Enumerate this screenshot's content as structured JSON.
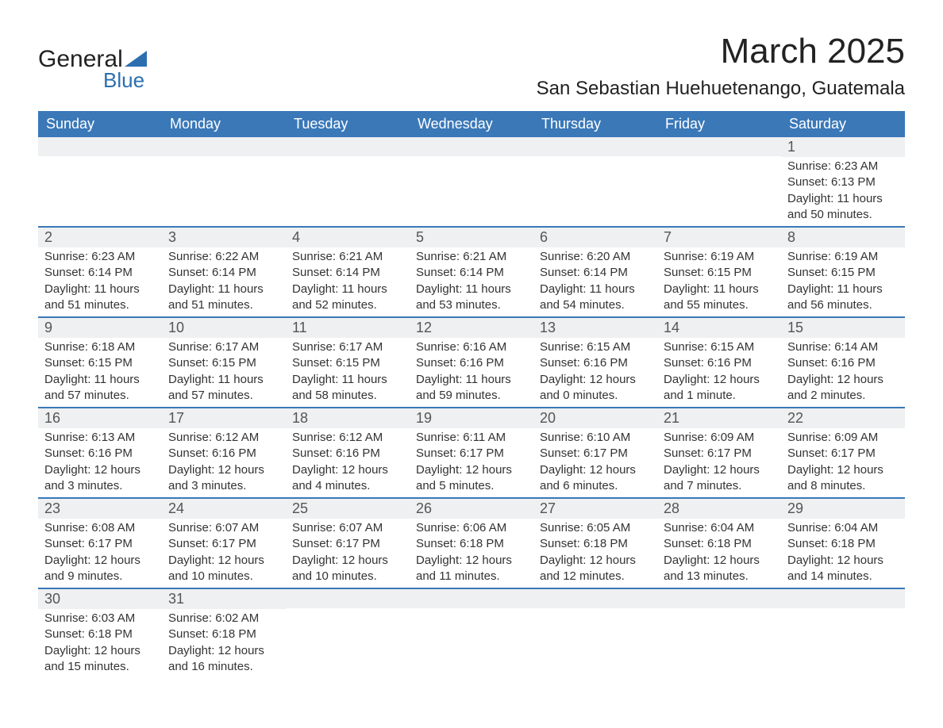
{
  "logo": {
    "line1": "General",
    "line2": "Blue",
    "triangle_color": "#2b6fb0"
  },
  "title": "March 2025",
  "location": "San Sebastian Huehuetenango, Guatemala",
  "colors": {
    "header_bg": "#3a78b8",
    "header_text": "#ffffff",
    "daynum_bg": "#eef0f1",
    "row_divider": "#3a78b8",
    "text": "#333333",
    "page_bg": "#ffffff"
  },
  "fonts": {
    "title_pt": 44,
    "location_pt": 24,
    "weekday_pt": 18,
    "daynum_pt": 18,
    "body_pt": 15
  },
  "weekdays": [
    "Sunday",
    "Monday",
    "Tuesday",
    "Wednesday",
    "Thursday",
    "Friday",
    "Saturday"
  ],
  "labels": {
    "sunrise": "Sunrise:",
    "sunset": "Sunset:",
    "daylight": "Daylight:"
  },
  "weeks": [
    [
      {
        "day": "",
        "sunrise": "",
        "sunset": "",
        "daylight": ""
      },
      {
        "day": "",
        "sunrise": "",
        "sunset": "",
        "daylight": ""
      },
      {
        "day": "",
        "sunrise": "",
        "sunset": "",
        "daylight": ""
      },
      {
        "day": "",
        "sunrise": "",
        "sunset": "",
        "daylight": ""
      },
      {
        "day": "",
        "sunrise": "",
        "sunset": "",
        "daylight": ""
      },
      {
        "day": "",
        "sunrise": "",
        "sunset": "",
        "daylight": ""
      },
      {
        "day": "1",
        "sunrise": "6:23 AM",
        "sunset": "6:13 PM",
        "daylight": "11 hours and 50 minutes."
      }
    ],
    [
      {
        "day": "2",
        "sunrise": "6:23 AM",
        "sunset": "6:14 PM",
        "daylight": "11 hours and 51 minutes."
      },
      {
        "day": "3",
        "sunrise": "6:22 AM",
        "sunset": "6:14 PM",
        "daylight": "11 hours and 51 minutes."
      },
      {
        "day": "4",
        "sunrise": "6:21 AM",
        "sunset": "6:14 PM",
        "daylight": "11 hours and 52 minutes."
      },
      {
        "day": "5",
        "sunrise": "6:21 AM",
        "sunset": "6:14 PM",
        "daylight": "11 hours and 53 minutes."
      },
      {
        "day": "6",
        "sunrise": "6:20 AM",
        "sunset": "6:14 PM",
        "daylight": "11 hours and 54 minutes."
      },
      {
        "day": "7",
        "sunrise": "6:19 AM",
        "sunset": "6:15 PM",
        "daylight": "11 hours and 55 minutes."
      },
      {
        "day": "8",
        "sunrise": "6:19 AM",
        "sunset": "6:15 PM",
        "daylight": "11 hours and 56 minutes."
      }
    ],
    [
      {
        "day": "9",
        "sunrise": "6:18 AM",
        "sunset": "6:15 PM",
        "daylight": "11 hours and 57 minutes."
      },
      {
        "day": "10",
        "sunrise": "6:17 AM",
        "sunset": "6:15 PM",
        "daylight": "11 hours and 57 minutes."
      },
      {
        "day": "11",
        "sunrise": "6:17 AM",
        "sunset": "6:15 PM",
        "daylight": "11 hours and 58 minutes."
      },
      {
        "day": "12",
        "sunrise": "6:16 AM",
        "sunset": "6:16 PM",
        "daylight": "11 hours and 59 minutes."
      },
      {
        "day": "13",
        "sunrise": "6:15 AM",
        "sunset": "6:16 PM",
        "daylight": "12 hours and 0 minutes."
      },
      {
        "day": "14",
        "sunrise": "6:15 AM",
        "sunset": "6:16 PM",
        "daylight": "12 hours and 1 minute."
      },
      {
        "day": "15",
        "sunrise": "6:14 AM",
        "sunset": "6:16 PM",
        "daylight": "12 hours and 2 minutes."
      }
    ],
    [
      {
        "day": "16",
        "sunrise": "6:13 AM",
        "sunset": "6:16 PM",
        "daylight": "12 hours and 3 minutes."
      },
      {
        "day": "17",
        "sunrise": "6:12 AM",
        "sunset": "6:16 PM",
        "daylight": "12 hours and 3 minutes."
      },
      {
        "day": "18",
        "sunrise": "6:12 AM",
        "sunset": "6:16 PM",
        "daylight": "12 hours and 4 minutes."
      },
      {
        "day": "19",
        "sunrise": "6:11 AM",
        "sunset": "6:17 PM",
        "daylight": "12 hours and 5 minutes."
      },
      {
        "day": "20",
        "sunrise": "6:10 AM",
        "sunset": "6:17 PM",
        "daylight": "12 hours and 6 minutes."
      },
      {
        "day": "21",
        "sunrise": "6:09 AM",
        "sunset": "6:17 PM",
        "daylight": "12 hours and 7 minutes."
      },
      {
        "day": "22",
        "sunrise": "6:09 AM",
        "sunset": "6:17 PM",
        "daylight": "12 hours and 8 minutes."
      }
    ],
    [
      {
        "day": "23",
        "sunrise": "6:08 AM",
        "sunset": "6:17 PM",
        "daylight": "12 hours and 9 minutes."
      },
      {
        "day": "24",
        "sunrise": "6:07 AM",
        "sunset": "6:17 PM",
        "daylight": "12 hours and 10 minutes."
      },
      {
        "day": "25",
        "sunrise": "6:07 AM",
        "sunset": "6:17 PM",
        "daylight": "12 hours and 10 minutes."
      },
      {
        "day": "26",
        "sunrise": "6:06 AM",
        "sunset": "6:18 PM",
        "daylight": "12 hours and 11 minutes."
      },
      {
        "day": "27",
        "sunrise": "6:05 AM",
        "sunset": "6:18 PM",
        "daylight": "12 hours and 12 minutes."
      },
      {
        "day": "28",
        "sunrise": "6:04 AM",
        "sunset": "6:18 PM",
        "daylight": "12 hours and 13 minutes."
      },
      {
        "day": "29",
        "sunrise": "6:04 AM",
        "sunset": "6:18 PM",
        "daylight": "12 hours and 14 minutes."
      }
    ],
    [
      {
        "day": "30",
        "sunrise": "6:03 AM",
        "sunset": "6:18 PM",
        "daylight": "12 hours and 15 minutes."
      },
      {
        "day": "31",
        "sunrise": "6:02 AM",
        "sunset": "6:18 PM",
        "daylight": "12 hours and 16 minutes."
      },
      {
        "day": "",
        "sunrise": "",
        "sunset": "",
        "daylight": ""
      },
      {
        "day": "",
        "sunrise": "",
        "sunset": "",
        "daylight": ""
      },
      {
        "day": "",
        "sunrise": "",
        "sunset": "",
        "daylight": ""
      },
      {
        "day": "",
        "sunrise": "",
        "sunset": "",
        "daylight": ""
      },
      {
        "day": "",
        "sunrise": "",
        "sunset": "",
        "daylight": ""
      }
    ]
  ]
}
